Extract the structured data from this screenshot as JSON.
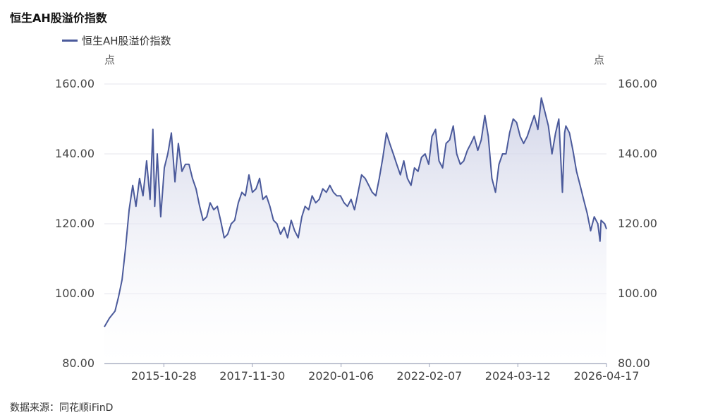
{
  "title": "恒生AH股溢价指数",
  "legend": {
    "label": "恒生AH股溢价指数"
  },
  "unit_left": "点",
  "unit_right": "点",
  "source": "数据来源：同花顺iFinD",
  "colors": {
    "line": "#4b5a9b",
    "grid": "#e6e6ee",
    "axis": "#9aa0b8",
    "area_top": "#c9cde4"
  },
  "chart_data": {
    "type": "area",
    "title": "恒生AH股溢价指数",
    "y_ticks": [
      "80.00",
      "100.00",
      "120.00",
      "140.00",
      "160.00"
    ],
    "ylim": [
      80,
      160
    ],
    "x_ticks": [
      "2015-10-28",
      "2017-11-30",
      "2020-01-06",
      "2022-02-07",
      "2024-03-12",
      "2026-04-17"
    ],
    "xlim": [
      "2014-06-01",
      "2026-04-17"
    ],
    "grid": true,
    "series": [
      {
        "name": "恒生AH股溢价指数",
        "points": [
          [
            "2014-06-01",
            90.5
          ],
          [
            "2014-07-15",
            93.0
          ],
          [
            "2014-09-01",
            95.0
          ],
          [
            "2014-10-01",
            99.0
          ],
          [
            "2014-11-01",
            104.0
          ],
          [
            "2014-12-01",
            113.0
          ],
          [
            "2015-01-01",
            124.0
          ],
          [
            "2015-02-01",
            131.0
          ],
          [
            "2015-03-01",
            125.0
          ],
          [
            "2015-04-01",
            133.0
          ],
          [
            "2015-05-01",
            128.0
          ],
          [
            "2015-06-01",
            138.0
          ],
          [
            "2015-07-01",
            127.0
          ],
          [
            "2015-07-25",
            147.0
          ],
          [
            "2015-08-10",
            125.0
          ],
          [
            "2015-09-01",
            140.0
          ],
          [
            "2015-10-01",
            122.0
          ],
          [
            "2015-11-01",
            136.0
          ],
          [
            "2015-12-01",
            140.0
          ],
          [
            "2016-01-01",
            146.0
          ],
          [
            "2016-02-01",
            132.0
          ],
          [
            "2016-03-01",
            143.0
          ],
          [
            "2016-04-01",
            135.0
          ],
          [
            "2016-05-01",
            137.0
          ],
          [
            "2016-06-01",
            137.0
          ],
          [
            "2016-07-01",
            133.0
          ],
          [
            "2016-08-01",
            130.0
          ],
          [
            "2016-09-01",
            125.0
          ],
          [
            "2016-10-01",
            121.0
          ],
          [
            "2016-11-01",
            122.0
          ],
          [
            "2016-12-01",
            126.0
          ],
          [
            "2017-01-01",
            124.0
          ],
          [
            "2017-02-01",
            125.0
          ],
          [
            "2017-03-01",
            121.0
          ],
          [
            "2017-04-01",
            116.0
          ],
          [
            "2017-05-01",
            117.0
          ],
          [
            "2017-06-01",
            120.0
          ],
          [
            "2017-07-01",
            121.0
          ],
          [
            "2017-08-01",
            126.0
          ],
          [
            "2017-09-01",
            129.0
          ],
          [
            "2017-10-01",
            128.0
          ],
          [
            "2017-11-01",
            134.0
          ],
          [
            "2017-12-01",
            129.0
          ],
          [
            "2018-01-01",
            130.0
          ],
          [
            "2018-02-01",
            133.0
          ],
          [
            "2018-03-01",
            127.0
          ],
          [
            "2018-04-01",
            128.0
          ],
          [
            "2018-05-01",
            125.0
          ],
          [
            "2018-06-01",
            121.0
          ],
          [
            "2018-07-01",
            120.0
          ],
          [
            "2018-08-01",
            117.0
          ],
          [
            "2018-09-01",
            119.0
          ],
          [
            "2018-10-01",
            116.0
          ],
          [
            "2018-11-01",
            121.0
          ],
          [
            "2018-12-01",
            118.0
          ],
          [
            "2019-01-01",
            116.0
          ],
          [
            "2019-02-01",
            122.0
          ],
          [
            "2019-03-01",
            125.0
          ],
          [
            "2019-04-01",
            124.0
          ],
          [
            "2019-05-01",
            128.0
          ],
          [
            "2019-06-01",
            126.0
          ],
          [
            "2019-07-01",
            127.0
          ],
          [
            "2019-08-01",
            130.0
          ],
          [
            "2019-09-01",
            129.0
          ],
          [
            "2019-10-01",
            131.0
          ],
          [
            "2019-11-01",
            129.0
          ],
          [
            "2019-12-01",
            128.0
          ],
          [
            "2020-01-01",
            128.0
          ],
          [
            "2020-02-01",
            126.0
          ],
          [
            "2020-03-01",
            125.0
          ],
          [
            "2020-04-01",
            127.0
          ],
          [
            "2020-05-01",
            124.0
          ],
          [
            "2020-06-01",
            129.0
          ],
          [
            "2020-07-01",
            134.0
          ],
          [
            "2020-08-01",
            133.0
          ],
          [
            "2020-09-01",
            131.0
          ],
          [
            "2020-10-01",
            129.0
          ],
          [
            "2020-11-01",
            128.0
          ],
          [
            "2020-12-01",
            133.0
          ],
          [
            "2021-01-01",
            139.0
          ],
          [
            "2021-02-01",
            146.0
          ],
          [
            "2021-03-01",
            143.0
          ],
          [
            "2021-04-01",
            140.0
          ],
          [
            "2021-05-01",
            137.0
          ],
          [
            "2021-06-01",
            134.0
          ],
          [
            "2021-07-01",
            138.0
          ],
          [
            "2021-08-01",
            133.0
          ],
          [
            "2021-09-01",
            131.0
          ],
          [
            "2021-10-01",
            136.0
          ],
          [
            "2021-11-01",
            135.0
          ],
          [
            "2021-12-01",
            139.0
          ],
          [
            "2022-01-01",
            140.0
          ],
          [
            "2022-02-01",
            137.0
          ],
          [
            "2022-03-01",
            145.0
          ],
          [
            "2022-04-01",
            147.0
          ],
          [
            "2022-05-01",
            138.0
          ],
          [
            "2022-06-01",
            136.0
          ],
          [
            "2022-07-01",
            143.0
          ],
          [
            "2022-08-01",
            144.0
          ],
          [
            "2022-09-01",
            148.0
          ],
          [
            "2022-10-01",
            140.0
          ],
          [
            "2022-11-01",
            137.0
          ],
          [
            "2022-12-01",
            138.0
          ],
          [
            "2023-01-01",
            141.0
          ],
          [
            "2023-02-01",
            143.0
          ],
          [
            "2023-03-01",
            145.0
          ],
          [
            "2023-04-01",
            141.0
          ],
          [
            "2023-05-01",
            144.0
          ],
          [
            "2023-06-01",
            151.0
          ],
          [
            "2023-07-01",
            145.0
          ],
          [
            "2023-08-01",
            133.0
          ],
          [
            "2023-09-01",
            129.0
          ],
          [
            "2023-10-01",
            137.0
          ],
          [
            "2023-11-01",
            140.0
          ],
          [
            "2023-12-01",
            140.0
          ],
          [
            "2024-01-01",
            146.0
          ],
          [
            "2024-02-01",
            150.0
          ],
          [
            "2024-03-01",
            149.0
          ],
          [
            "2024-04-01",
            145.0
          ],
          [
            "2024-05-01",
            143.0
          ],
          [
            "2024-06-01",
            145.0
          ],
          [
            "2024-07-01",
            148.0
          ],
          [
            "2024-08-01",
            151.0
          ],
          [
            "2024-09-01",
            147.0
          ],
          [
            "2024-10-01",
            156.0
          ],
          [
            "2024-11-01",
            152.0
          ],
          [
            "2024-12-01",
            148.0
          ],
          [
            "2025-01-01",
            140.0
          ],
          [
            "2025-02-01",
            146.0
          ],
          [
            "2025-03-01",
            150.0
          ],
          [
            "2025-04-01",
            129.0
          ],
          [
            "2025-04-20",
            146.0
          ],
          [
            "2025-05-01",
            148.0
          ],
          [
            "2025-06-01",
            146.0
          ],
          [
            "2025-07-01",
            141.0
          ],
          [
            "2025-08-01",
            135.0
          ],
          [
            "2025-09-01",
            131.0
          ],
          [
            "2025-10-01",
            127.0
          ],
          [
            "2025-11-01",
            123.0
          ],
          [
            "2025-12-01",
            118.0
          ],
          [
            "2026-01-01",
            122.0
          ],
          [
            "2026-02-01",
            120.0
          ],
          [
            "2026-02-20",
            115.0
          ],
          [
            "2026-03-01",
            121.0
          ],
          [
            "2026-04-01",
            120.0
          ],
          [
            "2026-04-17",
            118.5
          ]
        ]
      }
    ]
  }
}
